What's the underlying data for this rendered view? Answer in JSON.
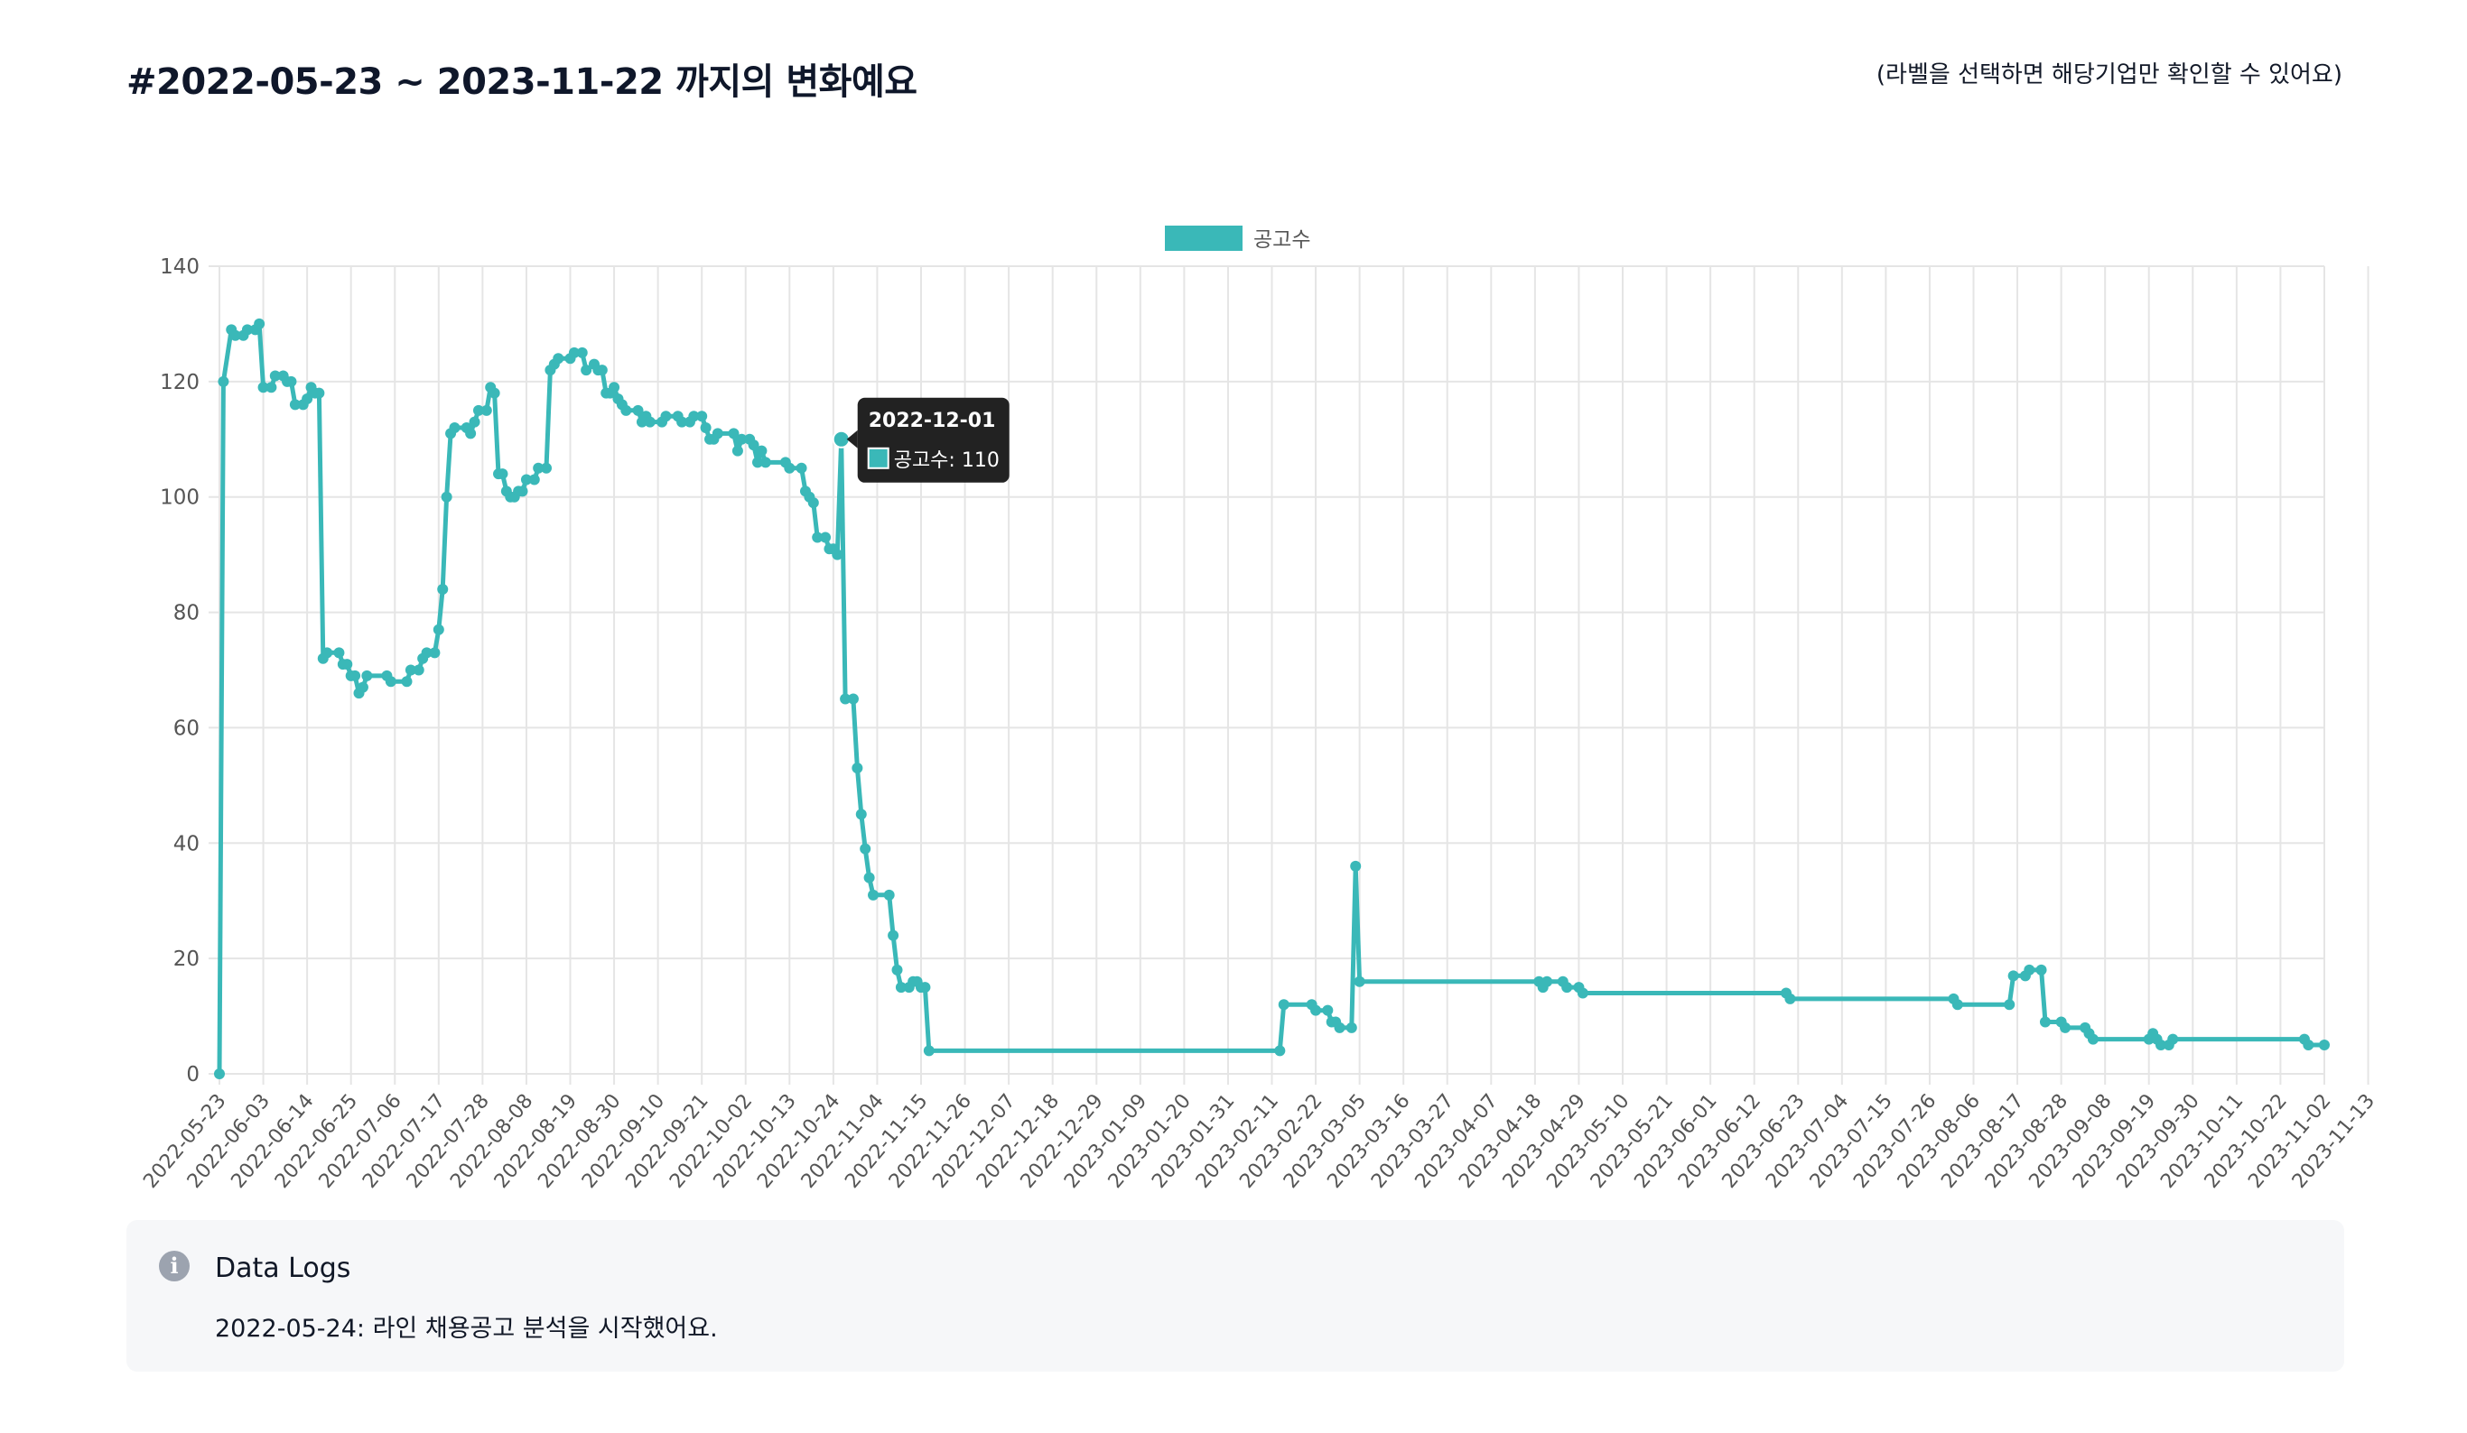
{
  "header": {
    "title": "#2022-05-23 ~ 2023-11-22 까지의 변화예요",
    "hint": "(라벨을 선택하면 해당기업만 확인할 수 있어요)"
  },
  "chart_data": {
    "type": "line",
    "ylim": [
      0,
      140
    ],
    "yticks": [
      0,
      20,
      40,
      60,
      80,
      100,
      120,
      140
    ],
    "grid": true,
    "legend_position": "top-center",
    "series": [
      {
        "name": "공고수",
        "color": "#3ab8b8",
        "points": [
          [
            "2022-05-23",
            0
          ],
          [
            "2022-05-24",
            120
          ],
          [
            "2022-05-26",
            129
          ],
          [
            "2022-05-27",
            128
          ],
          [
            "2022-05-29",
            128
          ],
          [
            "2022-05-30",
            129
          ],
          [
            "2022-06-01",
            129
          ],
          [
            "2022-06-02",
            130
          ],
          [
            "2022-06-03",
            119
          ],
          [
            "2022-06-05",
            119
          ],
          [
            "2022-06-06",
            121
          ],
          [
            "2022-06-08",
            121
          ],
          [
            "2022-06-09",
            120
          ],
          [
            "2022-06-10",
            120
          ],
          [
            "2022-06-11",
            116
          ],
          [
            "2022-06-13",
            116
          ],
          [
            "2022-06-14",
            117
          ],
          [
            "2022-06-15",
            119
          ],
          [
            "2022-06-16",
            118
          ],
          [
            "2022-06-17",
            118
          ],
          [
            "2022-06-18",
            72
          ],
          [
            "2022-06-19",
            73
          ],
          [
            "2022-06-22",
            73
          ],
          [
            "2022-06-23",
            71
          ],
          [
            "2022-06-24",
            71
          ],
          [
            "2022-06-25",
            69
          ],
          [
            "2022-06-26",
            69
          ],
          [
            "2022-06-27",
            66
          ],
          [
            "2022-06-28",
            67
          ],
          [
            "2022-06-29",
            69
          ],
          [
            "2022-07-04",
            69
          ],
          [
            "2022-07-05",
            68
          ],
          [
            "2022-07-09",
            68
          ],
          [
            "2022-07-10",
            70
          ],
          [
            "2022-07-12",
            70
          ],
          [
            "2022-07-13",
            72
          ],
          [
            "2022-07-14",
            73
          ],
          [
            "2022-07-16",
            73
          ],
          [
            "2022-07-17",
            77
          ],
          [
            "2022-07-18",
            84
          ],
          [
            "2022-07-19",
            100
          ],
          [
            "2022-07-20",
            111
          ],
          [
            "2022-07-21",
            112
          ],
          [
            "2022-07-24",
            112
          ],
          [
            "2022-07-25",
            111
          ],
          [
            "2022-07-26",
            113
          ],
          [
            "2022-07-27",
            115
          ],
          [
            "2022-07-29",
            115
          ],
          [
            "2022-07-30",
            119
          ],
          [
            "2022-07-31",
            118
          ],
          [
            "2022-08-01",
            104
          ],
          [
            "2022-08-02",
            104
          ],
          [
            "2022-08-03",
            101
          ],
          [
            "2022-08-04",
            100
          ],
          [
            "2022-08-05",
            100
          ],
          [
            "2022-08-06",
            101
          ],
          [
            "2022-08-07",
            101
          ],
          [
            "2022-08-08",
            103
          ],
          [
            "2022-08-10",
            103
          ],
          [
            "2022-08-11",
            105
          ],
          [
            "2022-08-13",
            105
          ],
          [
            "2022-08-14",
            122
          ],
          [
            "2022-08-15",
            123
          ],
          [
            "2022-08-16",
            124
          ],
          [
            "2022-08-19",
            124
          ],
          [
            "2022-08-20",
            125
          ],
          [
            "2022-08-22",
            125
          ],
          [
            "2022-08-23",
            122
          ],
          [
            "2022-08-25",
            123
          ],
          [
            "2022-08-26",
            122
          ],
          [
            "2022-08-27",
            122
          ],
          [
            "2022-08-28",
            118
          ],
          [
            "2022-08-29",
            118
          ],
          [
            "2022-08-30",
            119
          ],
          [
            "2022-08-31",
            117
          ],
          [
            "2022-09-01",
            116
          ],
          [
            "2022-09-02",
            115
          ],
          [
            "2022-09-05",
            115
          ],
          [
            "2022-09-06",
            113
          ],
          [
            "2022-09-07",
            114
          ],
          [
            "2022-09-08",
            113
          ],
          [
            "2022-09-11",
            113
          ],
          [
            "2022-09-12",
            114
          ],
          [
            "2022-09-15",
            114
          ],
          [
            "2022-09-16",
            113
          ],
          [
            "2022-09-18",
            113
          ],
          [
            "2022-09-19",
            114
          ],
          [
            "2022-09-21",
            114
          ],
          [
            "2022-09-22",
            112
          ],
          [
            "2022-09-23",
            110
          ],
          [
            "2022-09-24",
            110
          ],
          [
            "2022-09-25",
            111
          ],
          [
            "2022-09-29",
            111
          ],
          [
            "2022-09-30",
            108
          ],
          [
            "2022-10-01",
            110
          ],
          [
            "2022-10-03",
            110
          ],
          [
            "2022-10-04",
            109
          ],
          [
            "2022-10-05",
            106
          ],
          [
            "2022-10-06",
            108
          ],
          [
            "2022-10-07",
            106
          ],
          [
            "2022-10-12",
            106
          ],
          [
            "2022-10-13",
            105
          ],
          [
            "2022-10-16",
            105
          ],
          [
            "2022-10-17",
            101
          ],
          [
            "2022-10-18",
            100
          ],
          [
            "2022-10-19",
            99
          ],
          [
            "2022-10-20",
            93
          ],
          [
            "2022-10-22",
            93
          ],
          [
            "2022-10-23",
            91
          ],
          [
            "2022-10-24",
            91
          ],
          [
            "2022-10-25",
            90
          ],
          [
            "2022-10-26",
            110
          ],
          [
            "2022-10-27",
            65
          ],
          [
            "2022-10-29",
            65
          ],
          [
            "2022-10-30",
            53
          ],
          [
            "2022-10-31",
            45
          ],
          [
            "2022-11-01",
            39
          ],
          [
            "2022-11-02",
            34
          ],
          [
            "2022-11-03",
            31
          ],
          [
            "2022-11-07",
            31
          ],
          [
            "2022-11-08",
            24
          ],
          [
            "2022-11-09",
            18
          ],
          [
            "2022-11-10",
            15
          ],
          [
            "2022-11-12",
            15
          ],
          [
            "2022-11-13",
            16
          ],
          [
            "2022-11-14",
            16
          ],
          [
            "2022-11-15",
            15
          ],
          [
            "2022-11-16",
            15
          ],
          [
            "2022-11-17",
            4
          ],
          [
            "2023-02-13",
            4
          ],
          [
            "2023-02-14",
            12
          ],
          [
            "2023-02-21",
            12
          ],
          [
            "2023-02-22",
            11
          ],
          [
            "2023-02-25",
            11
          ],
          [
            "2023-02-26",
            9
          ],
          [
            "2023-02-27",
            9
          ],
          [
            "2023-02-28",
            8
          ],
          [
            "2023-03-03",
            8
          ],
          [
            "2023-03-04",
            36
          ],
          [
            "2023-03-05",
            16
          ],
          [
            "2023-04-19",
            16
          ],
          [
            "2023-04-20",
            15
          ],
          [
            "2023-04-21",
            16
          ],
          [
            "2023-04-25",
            16
          ],
          [
            "2023-04-26",
            15
          ],
          [
            "2023-04-29",
            15
          ],
          [
            "2023-04-30",
            14
          ],
          [
            "2023-06-20",
            14
          ],
          [
            "2023-06-21",
            13
          ],
          [
            "2023-08-01",
            13
          ],
          [
            "2023-08-02",
            12
          ],
          [
            "2023-08-15",
            12
          ],
          [
            "2023-08-16",
            17
          ],
          [
            "2023-08-19",
            17
          ],
          [
            "2023-08-20",
            18
          ],
          [
            "2023-08-23",
            18
          ],
          [
            "2023-08-24",
            9
          ],
          [
            "2023-08-28",
            9
          ],
          [
            "2023-08-29",
            8
          ],
          [
            "2023-09-03",
            8
          ],
          [
            "2023-09-04",
            7
          ],
          [
            "2023-09-05",
            6
          ],
          [
            "2023-09-19",
            6
          ],
          [
            "2023-09-20",
            7
          ],
          [
            "2023-09-21",
            6
          ],
          [
            "2023-09-22",
            5
          ],
          [
            "2023-09-24",
            5
          ],
          [
            "2023-09-25",
            6
          ],
          [
            "2023-10-28",
            6
          ],
          [
            "2023-10-29",
            5
          ],
          [
            "2023-11-02",
            5
          ]
        ]
      }
    ],
    "x_labels": [
      "2022-05-23",
      "2022-06-03",
      "2022-06-14",
      "2022-06-25",
      "2022-07-06",
      "2022-07-17",
      "2022-07-28",
      "2022-08-08",
      "2022-08-19",
      "2022-08-30",
      "2022-09-10",
      "2022-09-21",
      "2022-10-02",
      "2022-10-13",
      "2022-10-24",
      "2022-11-04",
      "2022-11-15",
      "2022-11-26",
      "2022-12-07",
      "2022-12-18",
      "2022-12-29",
      "2023-01-09",
      "2023-01-20",
      "2023-01-31",
      "2023-02-11",
      "2023-02-22",
      "2023-03-05",
      "2023-03-16",
      "2023-03-27",
      "2023-04-07",
      "2023-04-18",
      "2023-04-29",
      "2023-05-10",
      "2023-05-21",
      "2023-06-01",
      "2023-06-12",
      "2023-06-23",
      "2023-07-04",
      "2023-07-15",
      "2023-07-26",
      "2023-08-06",
      "2023-08-17",
      "2023-08-28",
      "2023-09-08",
      "2023-09-19",
      "2023-09-30",
      "2023-10-11",
      "2023-10-22",
      "2023-11-02",
      "2023-11-13"
    ],
    "tooltip": {
      "date": "2022-12-01",
      "label": "공고수: 110",
      "anchor_date": "2022-10-26",
      "value": 110
    }
  },
  "logs": {
    "title": "Data Logs",
    "entry": "2022-05-24: 라인 채용공고 분석을 시작했어요."
  }
}
